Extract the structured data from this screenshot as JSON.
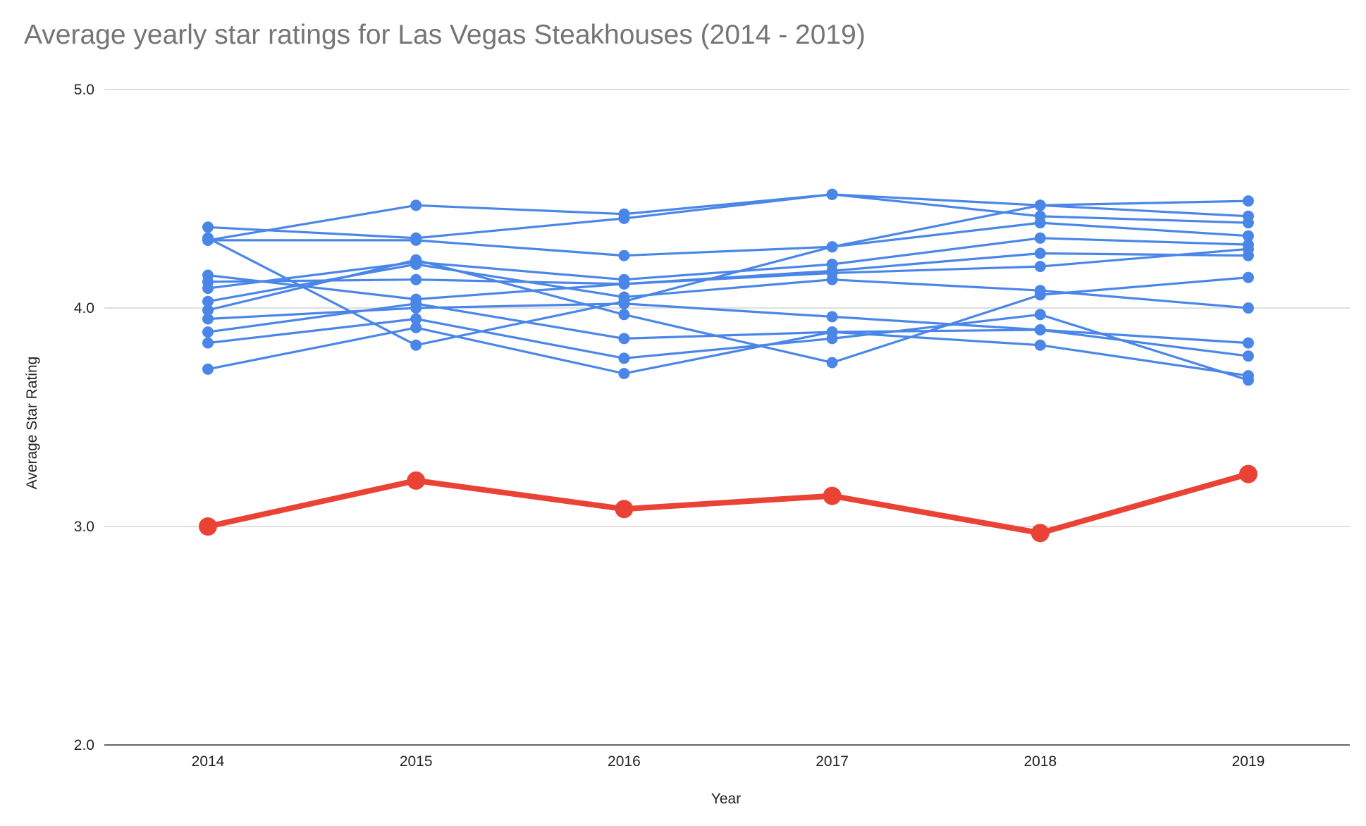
{
  "chart_data": {
    "type": "line",
    "title": "Average yearly star ratings for Las Vegas Steakhouses (2014 - 2019)",
    "xlabel": "Year",
    "ylabel": "Average Star Rating",
    "categories": [
      "2014",
      "2015",
      "2016",
      "2017",
      "2018",
      "2019"
    ],
    "ylim": [
      2.0,
      5.0
    ],
    "yticks": [
      2.0,
      3.0,
      4.0,
      5.0
    ],
    "ytick_labels": [
      "2.0",
      "3.0",
      "4.0",
      "5.0"
    ],
    "grid": true,
    "legend": "none",
    "highlight_color": "#ea4335",
    "series_color": "#4a86e8",
    "series": [
      {
        "values": [
          4.31,
          4.47,
          4.43,
          4.52,
          4.47,
          4.49
        ],
        "highlight": false
      },
      {
        "values": [
          4.37,
          4.32,
          4.41,
          4.52,
          4.42,
          4.39
        ],
        "highlight": false
      },
      {
        "values": [
          4.31,
          4.31,
          4.24,
          4.28,
          4.47,
          4.42
        ],
        "highlight": false
      },
      {
        "values": [
          4.32,
          3.83,
          4.03,
          4.28,
          4.39,
          4.33
        ],
        "highlight": false
      },
      {
        "values": [
          4.09,
          4.21,
          4.13,
          4.2,
          4.32,
          4.29
        ],
        "highlight": false
      },
      {
        "values": [
          4.15,
          4.04,
          4.11,
          4.17,
          4.25,
          4.24
        ],
        "highlight": false
      },
      {
        "values": [
          4.12,
          4.13,
          4.11,
          4.16,
          4.19,
          4.27
        ],
        "highlight": false
      },
      {
        "values": [
          4.03,
          4.2,
          4.05,
          4.13,
          4.08,
          4.0
        ],
        "highlight": false
      },
      {
        "values": [
          3.99,
          4.22,
          3.97,
          3.75,
          4.06,
          4.14
        ],
        "highlight": false
      },
      {
        "values": [
          3.95,
          4.0,
          4.02,
          3.96,
          3.9,
          3.84
        ],
        "highlight": false
      },
      {
        "values": [
          3.89,
          4.02,
          3.86,
          3.89,
          3.9,
          3.78
        ],
        "highlight": false
      },
      {
        "values": [
          3.84,
          3.95,
          3.77,
          3.86,
          3.97,
          3.67
        ],
        "highlight": false
      },
      {
        "values": [
          3.72,
          3.91,
          3.7,
          3.89,
          3.83,
          3.69
        ],
        "highlight": false
      },
      {
        "values": [
          3.0,
          3.21,
          3.08,
          3.14,
          2.97,
          3.24
        ],
        "highlight": true
      }
    ]
  }
}
